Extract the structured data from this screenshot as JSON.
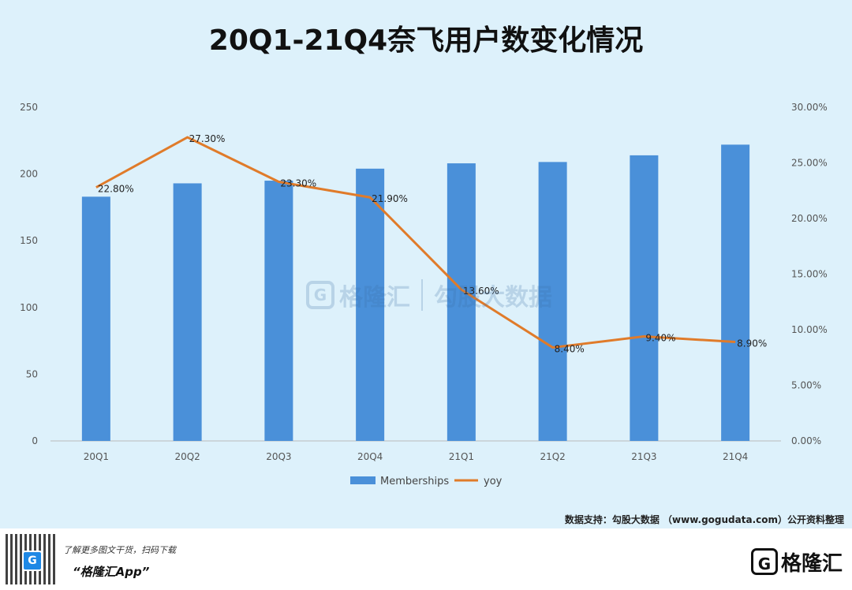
{
  "title": "20Q1-21Q4奈飞用户数变化情况",
  "chart_data": {
    "type": "bar",
    "title": "20Q1-21Q4奈飞用户数变化情况",
    "categories": [
      "20Q1",
      "20Q2",
      "20Q3",
      "20Q4",
      "21Q1",
      "21Q2",
      "21Q3",
      "21Q4"
    ],
    "series": [
      {
        "name": "Memberships",
        "type": "bar",
        "axis": "left",
        "color": "#4a90d9",
        "values": [
          183,
          193,
          195,
          204,
          208,
          209,
          214,
          222
        ]
      },
      {
        "name": "yoy",
        "type": "line",
        "axis": "right",
        "color": "#e07b2a",
        "values": [
          22.8,
          27.3,
          23.3,
          21.9,
          13.6,
          8.4,
          9.4,
          8.9
        ],
        "labels": [
          "22.80%",
          "27.30%",
          "23.30%",
          "21.90%",
          "13.60%",
          "8.40%",
          "9.40%",
          "8.90%"
        ]
      }
    ],
    "ylim_left": [
      0,
      250
    ],
    "yticks_left": [
      "0",
      "50",
      "100",
      "150",
      "200",
      "250"
    ],
    "ylim_right": [
      0,
      30
    ],
    "yticks_right": [
      "0.00%",
      "5.00%",
      "10.00%",
      "15.00%",
      "20.00%",
      "25.00%",
      "30.00%"
    ],
    "grid": false,
    "legend_position": "bottom"
  },
  "source": "数据支持：勾股大数据 （www.gogudata.com）公开资料整理",
  "footer": {
    "promo": "了解更多图文干货，扫码下载",
    "app_name": "“格隆汇App”",
    "logo_text": "格隆汇",
    "logo_mark": "G"
  },
  "watermark": {
    "mark": "G",
    "brand": "格隆汇",
    "partner": "勾股大数据"
  }
}
